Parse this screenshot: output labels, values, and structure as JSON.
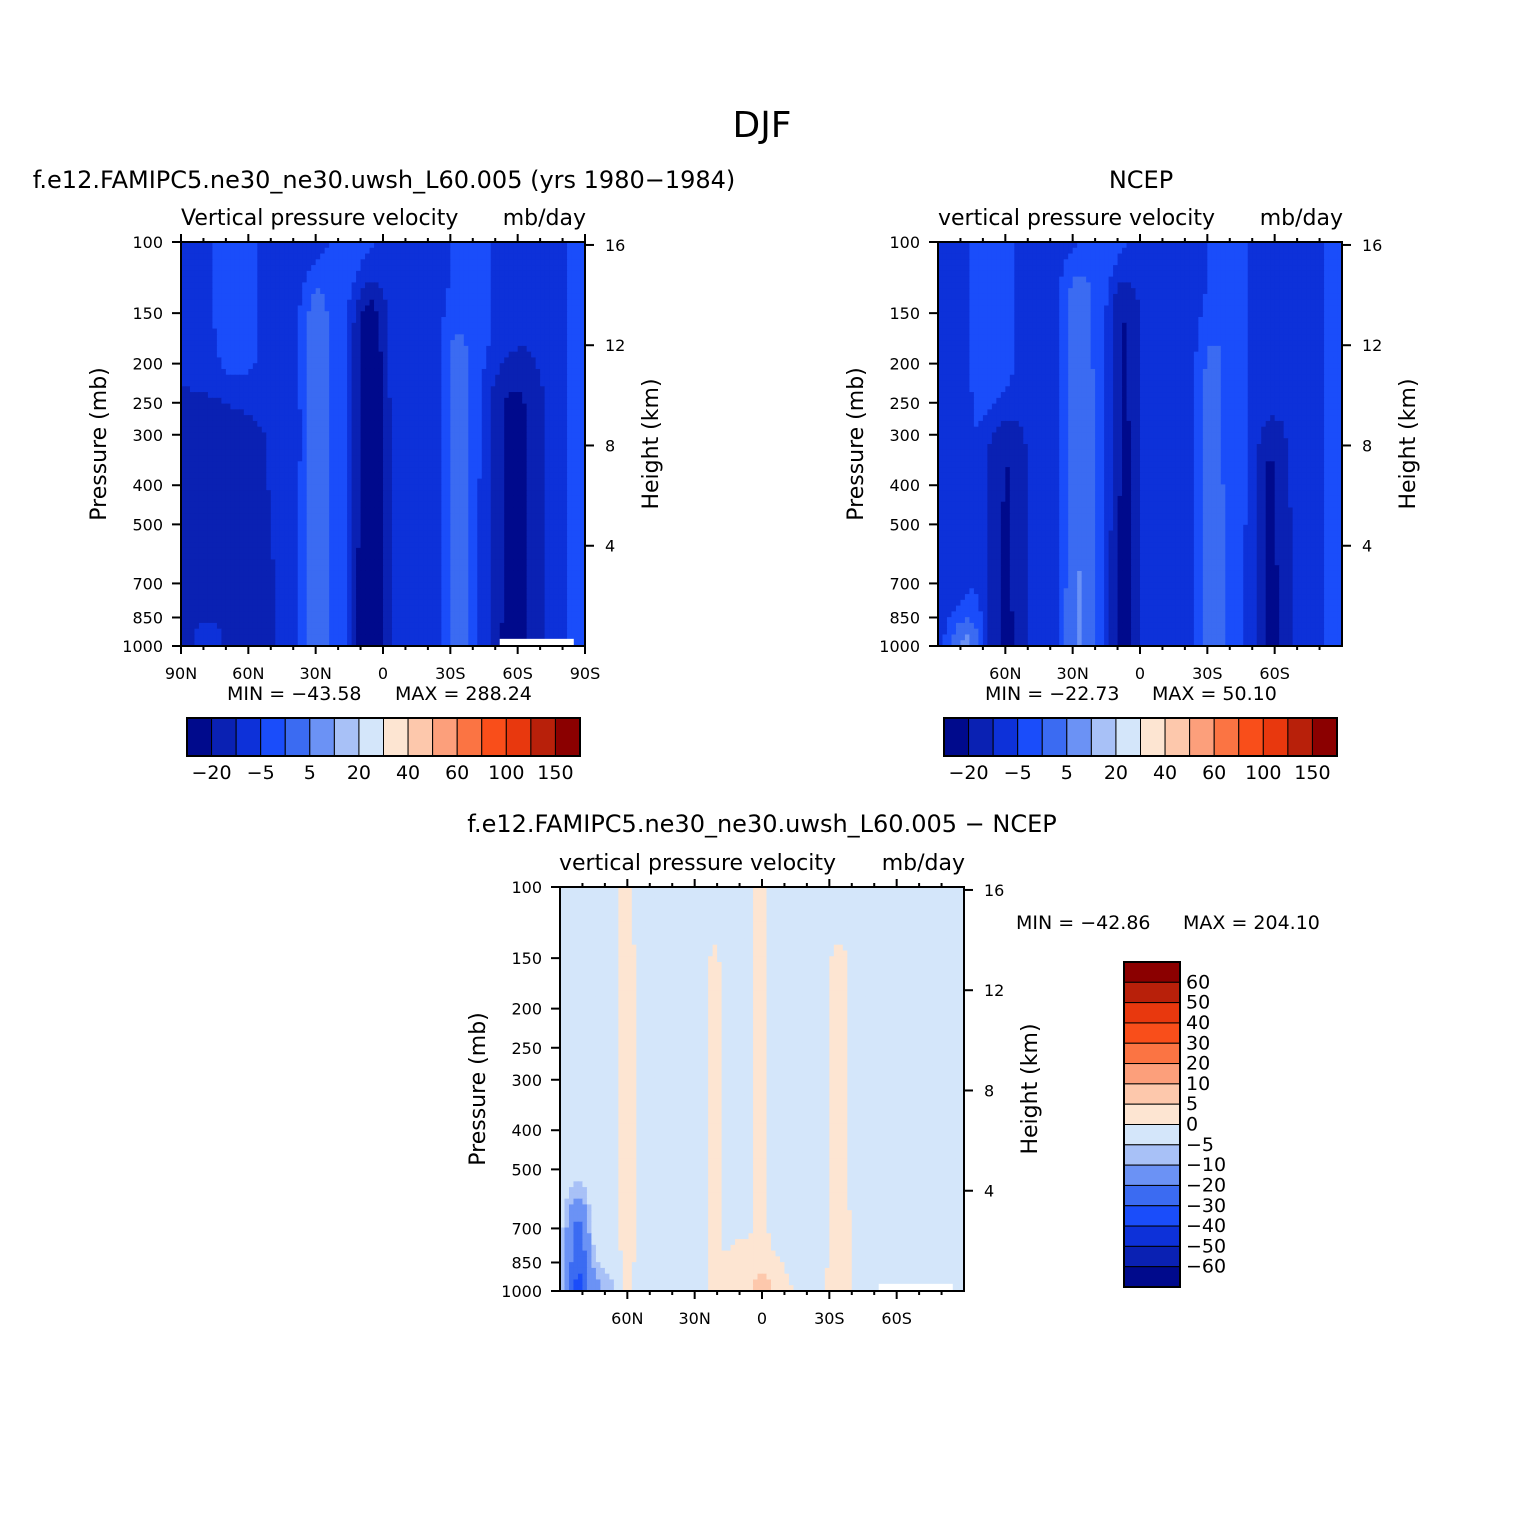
{
  "figure_title": "DJF",
  "colors": {
    "blue_scale": [
      "#000a8c",
      "#0a21b3",
      "#0d31d9",
      "#1a4dfa",
      "#3b6bf2",
      "#6b92f5",
      "#a8c1f7",
      "#d4e6fa"
    ],
    "red_scale": [
      "#fde5d2",
      "#fdc8ac",
      "#fc9f7b",
      "#fb7443",
      "#f94e1a",
      "#e8380e",
      "#b8200a",
      "#8b0000"
    ],
    "zero_band": "#d4e6fa",
    "missing": "#ffffff"
  },
  "chart_data": [
    {
      "type": "heatmap",
      "id": "model",
      "title": "f.e12.FAMIPC5.ne30_ne30.uwsh_L60.005 (yrs 1980-1984)",
      "left_title": "Vertical pressure velocity",
      "units": "mb/day",
      "ylabel": "Pressure (mb)",
      "ylabel_right": "Height (km)",
      "x_ticks": [
        "90N",
        "60N",
        "30N",
        "0",
        "30S",
        "60S",
        "90S"
      ],
      "y_ticks": [
        "100",
        "150",
        "200",
        "250",
        "300",
        "400",
        "500",
        "700",
        "850",
        "1000"
      ],
      "y2_ticks": [
        "16",
        "12",
        "8",
        "4"
      ],
      "xlim": [
        90,
        -90
      ],
      "ylim": [
        1000,
        100
      ],
      "y_scale": "log",
      "min_label": "MIN = -43.58",
      "max_label": "MAX = 288.24",
      "min": -43.58,
      "max": 288.24,
      "colorbar_orientation": "horizontal",
      "colorbar_labels": [
        "-20",
        "-5",
        "5",
        "20",
        "40",
        "60",
        "100",
        "150"
      ],
      "features": [
        {
          "lat_center": 30,
          "lat_width": 14,
          "top_p": 150,
          "value": 12
        },
        {
          "lat_center": -33,
          "lat_width": 12,
          "top_p": 200,
          "value": 8
        },
        {
          "lat_center": 6,
          "lat_width": 12,
          "top_p": 170,
          "value": -35
        },
        {
          "lat_center": 72,
          "lat_width": 40,
          "top_p": 300,
          "value": -12
        },
        {
          "lat_center": -58,
          "lat_width": 20,
          "top_p": 260,
          "value": -18
        }
      ]
    },
    {
      "type": "heatmap",
      "id": "obs",
      "title": "NCEP",
      "left_title": "vertical pressure velocity",
      "units": "mb/day",
      "ylabel": "Pressure (mb)",
      "ylabel_right": "Height (km)",
      "x_ticks": [
        "60N",
        "30N",
        "0",
        "30S",
        "60S"
      ],
      "y_ticks": [
        "100",
        "150",
        "200",
        "250",
        "300",
        "400",
        "500",
        "700",
        "850",
        "1000"
      ],
      "y2_ticks": [
        "16",
        "12",
        "8",
        "4"
      ],
      "xlim": [
        90,
        -90
      ],
      "ylim": [
        1000,
        100
      ],
      "y_scale": "log",
      "min_label": "MIN = -22.73",
      "max_label": "MAX = 50.10",
      "min": -22.73,
      "max": 50.1,
      "colorbar_orientation": "horizontal",
      "colorbar_labels": [
        "-20",
        "-5",
        "5",
        "20",
        "40",
        "60",
        "100",
        "150"
      ],
      "features": [
        {
          "lat_center": 28,
          "lat_width": 16,
          "top_p": 140,
          "value": 12
        },
        {
          "lat_center": -32,
          "lat_width": 12,
          "top_p": 210,
          "value": 8
        },
        {
          "lat_center": 7,
          "lat_width": 12,
          "top_p": 160,
          "value": -20
        },
        {
          "lat_center": 60,
          "lat_width": 16,
          "top_p": 350,
          "value": -18
        },
        {
          "lat_center": -58,
          "lat_width": 12,
          "top_p": 380,
          "value": -16
        }
      ]
    },
    {
      "type": "heatmap",
      "id": "diff",
      "title": "f.e12.FAMIPC5.ne30_ne30.uwsh_L60.005 - NCEP",
      "left_title": "vertical pressure velocity",
      "units": "mb/day",
      "ylabel": "Pressure (mb)",
      "ylabel_right": "Height (km)",
      "x_ticks": [
        "60N",
        "30N",
        "0",
        "30S",
        "60S"
      ],
      "y_ticks": [
        "100",
        "150",
        "200",
        "250",
        "300",
        "400",
        "500",
        "700",
        "850",
        "1000"
      ],
      "y2_ticks": [
        "16",
        "12",
        "8",
        "4"
      ],
      "xlim": [
        90,
        -90
      ],
      "ylim": [
        1000,
        100
      ],
      "y_scale": "log",
      "min_label": "MIN = -42.86",
      "max_label": "MAX = 204.10",
      "min": -42.86,
      "max": 204.1,
      "colorbar_orientation": "vertical",
      "colorbar_labels": [
        "60",
        "50",
        "40",
        "30",
        "20",
        "10",
        "5",
        "0",
        "-5",
        "-10",
        "-20",
        "-30",
        "-40",
        "-50",
        "-60"
      ],
      "features": [
        {
          "lat_center": 60,
          "lat_width": 6,
          "top_p": 100,
          "value": 2
        },
        {
          "lat_center": 0,
          "lat_width": 8,
          "top_p": 100,
          "value": 2
        },
        {
          "lat_center": 22,
          "lat_width": 6,
          "top_p": 180,
          "value": 2
        },
        {
          "lat_center": -33,
          "lat_width": 8,
          "top_p": 185,
          "value": 2
        },
        {
          "lat_center": 82,
          "lat_width": 10,
          "top_p": 750,
          "value": -25
        }
      ]
    }
  ]
}
